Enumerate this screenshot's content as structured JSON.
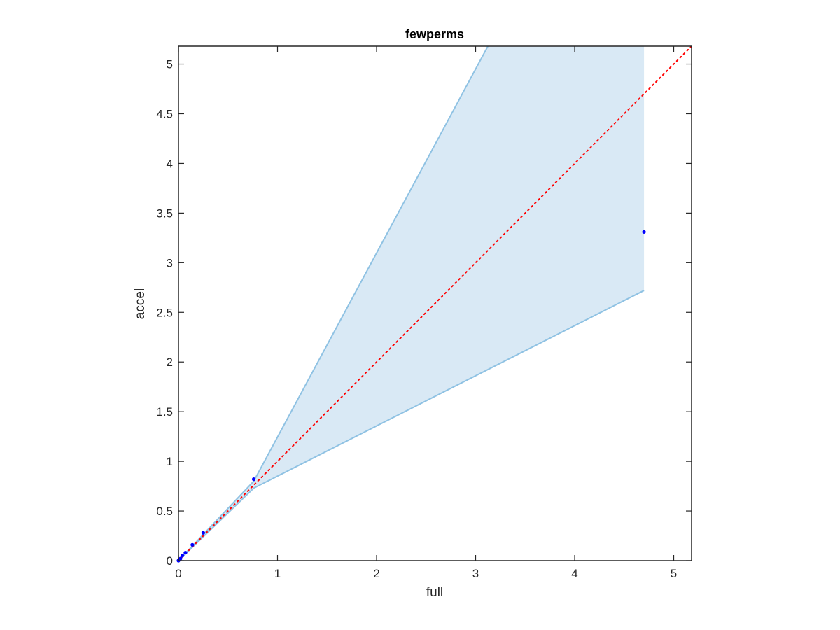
{
  "chart_data": {
    "type": "scatter",
    "title": "fewperms",
    "xlabel": "full",
    "ylabel": "accel",
    "xlim": [
      0,
      5.18
    ],
    "ylim": [
      0,
      5.18
    ],
    "xticks": [
      0,
      1,
      2,
      3,
      4,
      5
    ],
    "xtick_labels": [
      "0",
      "1",
      "2",
      "3",
      "4",
      "5"
    ],
    "yticks": [
      0,
      0.5,
      1,
      1.5,
      2,
      2.5,
      3,
      3.5,
      4,
      4.5,
      5
    ],
    "ytick_labels": [
      "0",
      "0.5",
      "1",
      "1.5",
      "2",
      "2.5",
      "3",
      "3.5",
      "4",
      "4.5",
      "5"
    ],
    "grid": false,
    "box": true,
    "series": [
      {
        "kind": "points",
        "color": "#0000ff",
        "x": [
          0.0,
          0.01,
          0.02,
          0.04,
          0.07,
          0.14,
          0.25,
          0.76,
          4.7
        ],
        "y": [
          0.0,
          0.01,
          0.02,
          0.05,
          0.08,
          0.16,
          0.28,
          0.82,
          3.31
        ]
      },
      {
        "kind": "band",
        "fill_color": "#d9e9f5",
        "edge_color": "#8fc2e3",
        "x": [
          0.0,
          0.76,
          4.7
        ],
        "upper": [
          0.0,
          0.8,
          8.1
        ],
        "lower": [
          0.0,
          0.73,
          2.72
        ]
      },
      {
        "kind": "reference-line",
        "color": "#ff0000",
        "style": "dotted",
        "x": [
          0,
          5.18
        ],
        "y": [
          0,
          5.18
        ]
      }
    ]
  }
}
